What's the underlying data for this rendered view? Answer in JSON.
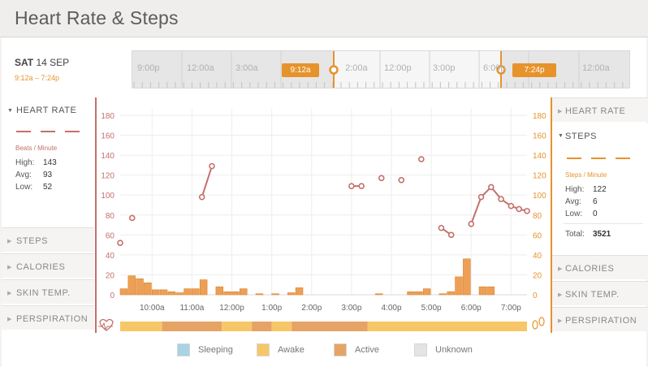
{
  "header": {
    "title": "Heart Rate & Steps"
  },
  "date": {
    "day_of_week": "SAT",
    "date": "14 SEP",
    "range": "9:12a – 7:24p"
  },
  "timeline": {
    "labels": [
      "9:00p",
      "12:00a",
      "3:00a",
      "12:00a",
      "12:00p",
      "3:00p",
      "6:00p",
      "12:00a"
    ],
    "start_handle": "9:12a",
    "end_handle": "7:24p"
  },
  "sidebar_left": {
    "heart_rate": {
      "label": "HEART RATE",
      "unit": "Beats / Minute",
      "high_label": "High:",
      "high": "143",
      "avg_label": "Avg:",
      "avg": "93",
      "low_label": "Low:",
      "low": "52"
    },
    "items": [
      {
        "label": "STEPS"
      },
      {
        "label": "CALORIES"
      },
      {
        "label": "SKIN TEMP."
      },
      {
        "label": "PERSPIRATION"
      }
    ]
  },
  "sidebar_right": {
    "heart_rate_label": "HEART RATE",
    "steps": {
      "label": "STEPS",
      "unit": "Steps / Minute",
      "high_label": "High:",
      "high": "122",
      "avg_label": "Avg:",
      "avg": "6",
      "low_label": "Low:",
      "low": "0",
      "total_label": "Total:",
      "total": "3521"
    },
    "items": [
      {
        "label": "CALORIES"
      },
      {
        "label": "SKIN TEMP."
      },
      {
        "label": "PERSPIRATION"
      }
    ]
  },
  "legend": [
    {
      "label": "Sleeping",
      "color": "#a9d3e3"
    },
    {
      "label": "Awake",
      "color": "#f6c768"
    },
    {
      "label": "Active",
      "color": "#e6a366"
    },
    {
      "label": "Unknown",
      "color": "#e4e4e4"
    }
  ],
  "colors": {
    "heart_rate": "#c4706b",
    "steps": "#e6932c",
    "accent": "#e6932c"
  },
  "chart_data": {
    "type": "line",
    "x_tick_labels": [
      "10:00a",
      "11:00a",
      "12:00p",
      "1:00p",
      "2:00p",
      "3:00p",
      "4:00p",
      "5:00p",
      "6:00p",
      "7:00p"
    ],
    "x_range": [
      "9:12a",
      "7:24p"
    ],
    "ylim": [
      0,
      180
    ],
    "y_ticks": [
      0,
      20,
      40,
      60,
      80,
      100,
      120,
      140,
      160,
      180
    ],
    "grid": true,
    "heart_rate_series": [
      {
        "t": "9:12a",
        "bpm": 52
      },
      {
        "t": "9:30a",
        "bpm": 77
      },
      {
        "t": "11:15a",
        "bpm": 98
      },
      {
        "t": "11:30a",
        "bpm": 129
      },
      {
        "t": "3:00p",
        "bpm": 109
      },
      {
        "t": "3:15p",
        "bpm": 109
      },
      {
        "t": "3:45p",
        "bpm": 117
      },
      {
        "t": "4:15p",
        "bpm": 115
      },
      {
        "t": "4:45p",
        "bpm": 136
      },
      {
        "t": "5:15p",
        "bpm": 67
      },
      {
        "t": "5:30p",
        "bpm": 60
      },
      {
        "t": "6:00p",
        "bpm": 71
      },
      {
        "t": "6:15p",
        "bpm": 98
      },
      {
        "t": "6:30p",
        "bpm": 108
      },
      {
        "t": "6:45p",
        "bpm": 96
      },
      {
        "t": "7:00p",
        "bpm": 89
      },
      {
        "t": "7:12p",
        "bpm": 86
      },
      {
        "t": "7:24p",
        "bpm": 84
      }
    ],
    "steps_bars": [
      {
        "t": "9:12a",
        "steps": 6
      },
      {
        "t": "9:24a",
        "steps": 19
      },
      {
        "t": "9:36a",
        "steps": 16
      },
      {
        "t": "9:48a",
        "steps": 12
      },
      {
        "t": "10:00a",
        "steps": 5
      },
      {
        "t": "10:12a",
        "steps": 5
      },
      {
        "t": "10:24a",
        "steps": 3
      },
      {
        "t": "10:36a",
        "steps": 2
      },
      {
        "t": "10:48a",
        "steps": 6
      },
      {
        "t": "11:00a",
        "steps": 6
      },
      {
        "t": "11:12a",
        "steps": 15
      },
      {
        "t": "11:36a",
        "steps": 8
      },
      {
        "t": "11:48a",
        "steps": 3
      },
      {
        "t": "12:00p",
        "steps": 3
      },
      {
        "t": "12:12p",
        "steps": 6
      },
      {
        "t": "12:36p",
        "steps": 1
      },
      {
        "t": "1:00p",
        "steps": 1
      },
      {
        "t": "1:24p",
        "steps": 2
      },
      {
        "t": "1:36p",
        "steps": 7
      },
      {
        "t": "3:36p",
        "steps": 1
      },
      {
        "t": "4:24p",
        "steps": 3
      },
      {
        "t": "4:36p",
        "steps": 3
      },
      {
        "t": "4:48p",
        "steps": 6
      },
      {
        "t": "5:12p",
        "steps": 1
      },
      {
        "t": "5:24p",
        "steps": 3
      },
      {
        "t": "5:36p",
        "steps": 18
      },
      {
        "t": "5:48p",
        "steps": 36
      },
      {
        "t": "6:12p",
        "steps": 8
      },
      {
        "t": "6:24p",
        "steps": 8
      }
    ],
    "activity_bands": [
      {
        "start": "9:12a",
        "end": "10:15a",
        "state": "Awake"
      },
      {
        "start": "10:15a",
        "end": "11:45a",
        "state": "Active"
      },
      {
        "start": "11:45a",
        "end": "12:30p",
        "state": "Awake"
      },
      {
        "start": "12:30p",
        "end": "1:00p",
        "state": "Active"
      },
      {
        "start": "1:00p",
        "end": "1:30p",
        "state": "Awake"
      },
      {
        "start": "1:30p",
        "end": "3:24p",
        "state": "Active"
      },
      {
        "start": "3:24p",
        "end": "7:24p",
        "state": "Awake"
      }
    ]
  }
}
